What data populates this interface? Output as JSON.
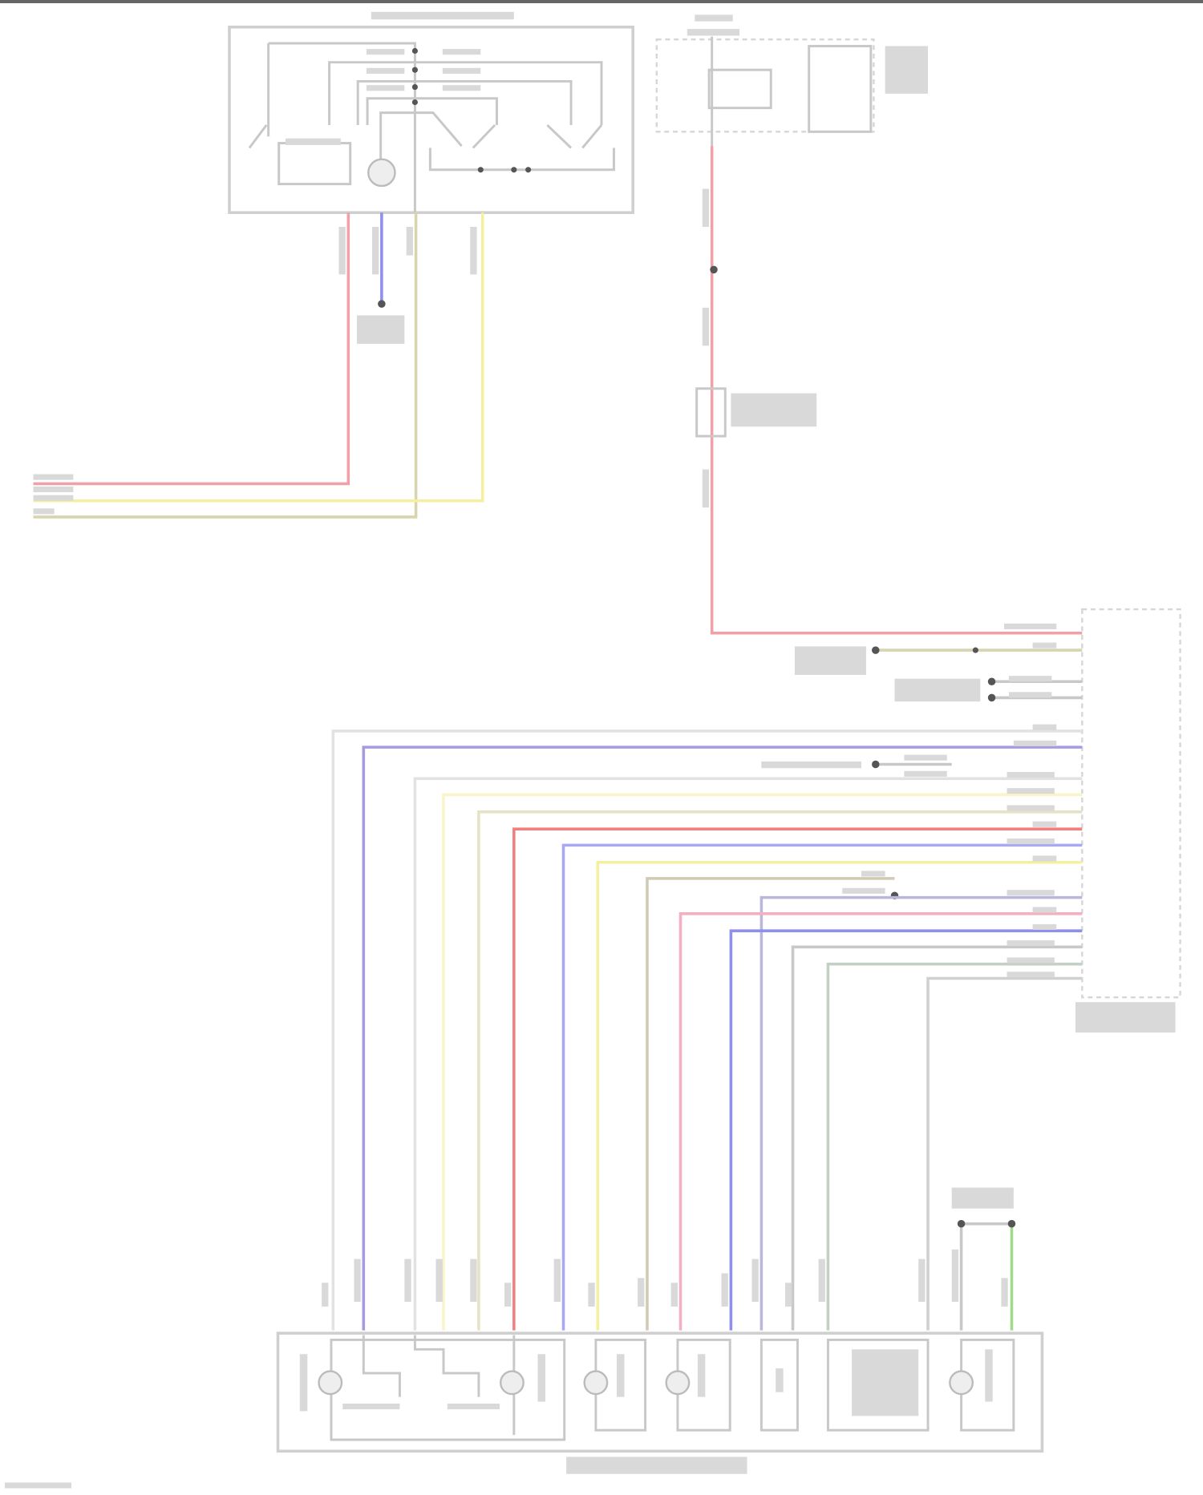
{
  "diagram": {
    "wire_colors": {
      "pink": "#f2a0a8",
      "red": "#f08080",
      "blue": "#8f8ff0",
      "violet": "#a89ae0",
      "yellow": "#f5f0a0",
      "tan": "#d8d4b0",
      "gray": "#c8c8c8",
      "light_gray": "#e2e2e2",
      "gray_green": "#c4d0c4",
      "green": "#9fdc8a"
    },
    "components": [
      {
        "id": "mirror-switch",
        "label": ""
      },
      {
        "id": "relay-panel",
        "label": ""
      },
      {
        "id": "in-line-connector",
        "label": ""
      },
      {
        "id": "control-module",
        "label": ""
      },
      {
        "id": "power-seat-assembly",
        "label": ""
      },
      {
        "id": "ground",
        "label": ""
      }
    ]
  }
}
